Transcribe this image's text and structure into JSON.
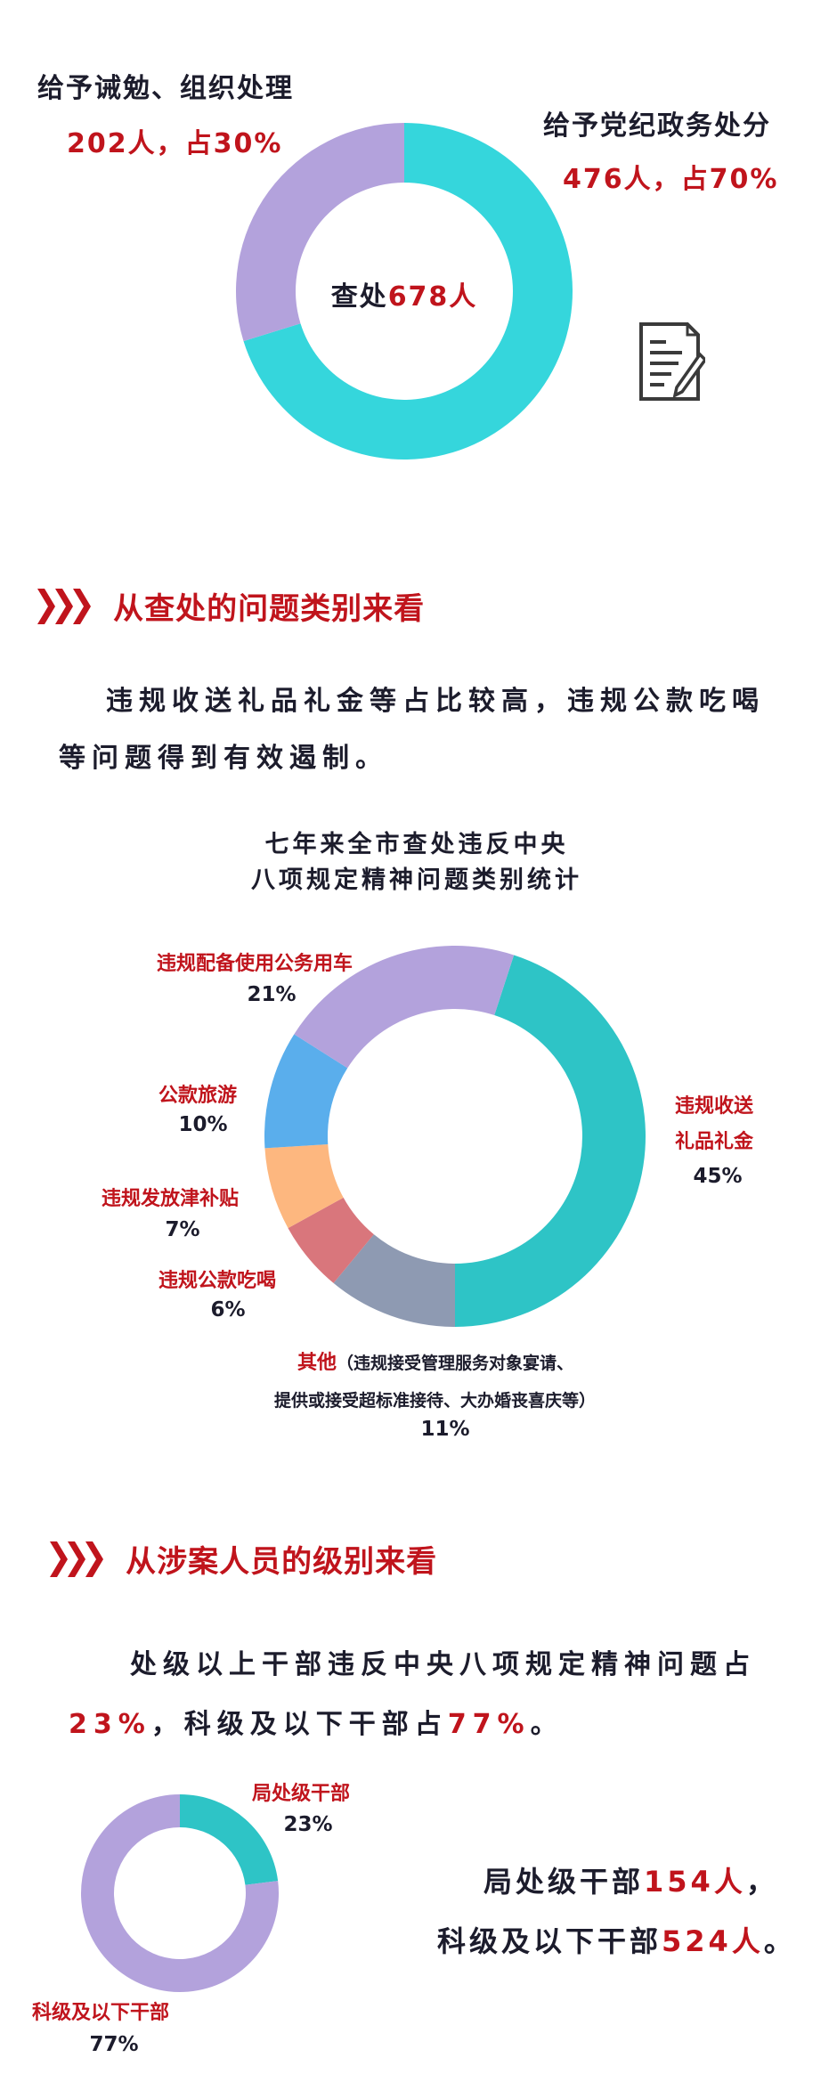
{
  "section1": {
    "left_label": "给予诫勉、组织处理",
    "left_value": "202人，占30%",
    "right_label": "给予党纪政务处分",
    "right_value": "476人，占70%",
    "center_prefix": "查处",
    "center_value": "678人",
    "icon": "document-pen-icon"
  },
  "section2": {
    "header": "从查处的问题类别来看",
    "para_line1": "违规收送礼品礼金等占比较高，违规公款吃喝",
    "para_line2": "等问题得到有效遏制。",
    "chart_title_line1": "七年来全市查处违反中央",
    "chart_title_line2": "八项规定精神问题类别统计",
    "other_note_line1": "（违规接受管理服务对象宴请、",
    "other_note_line2": "提供或接受超标准接待、大办婚丧喜庆等）"
  },
  "section3": {
    "header": "从涉案人员的级别来看",
    "para_line1": "处级以上干部违反中央八项规定精神问题占",
    "para_l2_a": "23%",
    "para_l2_b": "，科级及以下干部占",
    "para_l2_c": "77%",
    "para_l2_d": "。",
    "summary1_a": "局处级干部",
    "summary1_b": "154人",
    "summary1_c": "，",
    "summary2_a": "科级及以下干部",
    "summary2_b": "524人",
    "summary2_c": "。"
  },
  "colors": {
    "accent_red": "#c0141c",
    "text_dark": "#1c1c2c"
  },
  "chart_data": [
    {
      "type": "pie",
      "donut": true,
      "total_label": "查处678人",
      "categories": [
        "给予党纪政务处分",
        "给予诫勉、组织处理"
      ],
      "values": [
        476,
        202
      ],
      "percents": [
        70,
        30
      ],
      "colors": [
        "#35d6dc",
        "#b3a2dc"
      ]
    },
    {
      "type": "pie",
      "donut": true,
      "title": "七年来全市查处违反中央八项规定精神问题类别统计",
      "categories": [
        "违规收送礼品礼金",
        "其他",
        "违规公款吃喝",
        "违规发放津补贴",
        "公款旅游",
        "违规配备使用公务用车"
      ],
      "values": [
        45,
        11,
        6,
        7,
        10,
        21
      ],
      "labels": [
        "违规收送",
        "其他",
        "违规公款吃喝",
        "违规发放津补贴",
        "公款旅游",
        "违规配备使用公务用车"
      ],
      "label_line2": [
        "礼品礼金",
        "",
        "",
        "",
        "",
        ""
      ],
      "value_labels": [
        "45%",
        "11%",
        "6%",
        "7%",
        "10%",
        "21%"
      ],
      "colors": [
        "#2ec4c6",
        "#8e9ab2",
        "#d9767c",
        "#fdb77f",
        "#5aaeec",
        "#b3a2dc"
      ]
    },
    {
      "type": "pie",
      "donut": true,
      "categories": [
        "局处级干部",
        "科级及以下干部"
      ],
      "values": [
        23,
        77
      ],
      "value_labels": [
        "23%",
        "77%"
      ],
      "colors": [
        "#2ec4c6",
        "#b3a2dc"
      ]
    }
  ]
}
